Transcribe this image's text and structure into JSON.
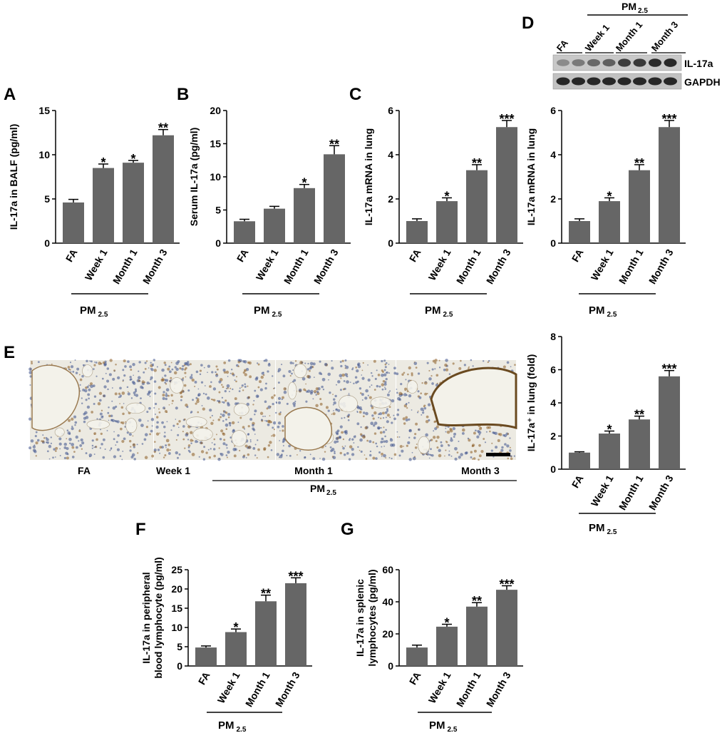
{
  "panels": [
    {
      "letter": "A",
      "type": "bar",
      "ylabel": "IL-17a in BALF (pg/ml)",
      "ylim": [
        0,
        15
      ],
      "yticks": [
        0,
        5,
        10,
        15
      ],
      "categories": [
        "FA",
        "Week 1",
        "Month 1",
        "Month 3"
      ],
      "values": [
        4.6,
        8.5,
        9.1,
        12.2
      ],
      "errors": [
        0.35,
        0.45,
        0.25,
        0.65
      ],
      "annotations": [
        "",
        "*",
        "*",
        "**"
      ],
      "group_label": "PM",
      "group_sub": "2.5"
    },
    {
      "letter": "B",
      "type": "bar",
      "ylabel": "Serum IL-17a (pg/ml)",
      "ylim": [
        0,
        20
      ],
      "yticks": [
        0,
        5,
        10,
        15,
        20
      ],
      "categories": [
        "FA",
        "Week 1",
        "Month 1",
        "Month 3"
      ],
      "values": [
        3.3,
        5.2,
        8.3,
        13.4
      ],
      "errors": [
        0.3,
        0.35,
        0.55,
        1.3
      ],
      "annotations": [
        "",
        "",
        "*",
        "**"
      ],
      "group_label": "PM",
      "group_sub": "2.5"
    },
    {
      "letter": "C",
      "type": "bar",
      "ylabel": "IL-17a mRNA in lung",
      "ylim": [
        0,
        6
      ],
      "yticks": [
        0,
        2,
        4,
        6
      ],
      "categories": [
        "FA",
        "Week 1",
        "Month 1",
        "Month 3"
      ],
      "values": [
        1.0,
        1.9,
        3.3,
        5.25
      ],
      "errors": [
        0.1,
        0.15,
        0.25,
        0.3
      ],
      "annotations": [
        "",
        "*",
        "**",
        "***"
      ],
      "group_label": "PM",
      "group_sub": "2.5"
    },
    {
      "letter": "D",
      "type": "bar",
      "ylabel": "IL-17a mRNA in lung",
      "ylim": [
        0,
        6
      ],
      "yticks": [
        0,
        2,
        4,
        6
      ],
      "categories": [
        "FA",
        "Week 1",
        "Month 1",
        "Month 3"
      ],
      "values": [
        1.0,
        1.9,
        3.3,
        5.25
      ],
      "errors": [
        0.1,
        0.15,
        0.25,
        0.3
      ],
      "annotations": [
        "",
        "*",
        "**",
        "***"
      ],
      "group_label": "PM",
      "group_sub": "2.5"
    },
    {
      "letter": "E",
      "type": "bar",
      "ylabel": "IL-17a⁺ in lung (fold)",
      "ylim": [
        0,
        8
      ],
      "yticks": [
        0,
        2,
        4,
        6,
        8
      ],
      "categories": [
        "FA",
        "Week 1",
        "Month 1",
        "Month 3"
      ],
      "values": [
        1.0,
        2.15,
        3.0,
        5.6
      ],
      "errors": [
        0.05,
        0.15,
        0.2,
        0.35
      ],
      "annotations": [
        "",
        "*",
        "**",
        "***"
      ],
      "group_label": "PM",
      "group_sub": "2.5"
    },
    {
      "letter": "F",
      "type": "bar",
      "ylabel": "IL-17a in peripheral blood lymphocyte (pg/ml)",
      "ylim": [
        0,
        25
      ],
      "yticks": [
        0,
        5,
        10,
        15,
        20,
        25
      ],
      "categories": [
        "FA",
        "Week 1",
        "Month 1",
        "Month 3"
      ],
      "values": [
        4.8,
        8.8,
        16.8,
        21.5
      ],
      "errors": [
        0.4,
        0.8,
        1.6,
        1.4
      ],
      "annotations": [
        "",
        "*",
        "**",
        "***"
      ],
      "group_label": "PM",
      "group_sub": "2.5"
    },
    {
      "letter": "G",
      "type": "bar",
      "ylabel": "IL-17a in splenic lymphocytes (pg/ml)",
      "ylim": [
        0,
        60
      ],
      "yticks": [
        0,
        20,
        40,
        60
      ],
      "categories": [
        "FA",
        "Week 1",
        "Month 1",
        "Month 3"
      ],
      "values": [
        11.5,
        24.5,
        37.0,
        47.5
      ],
      "errors": [
        1.5,
        1.5,
        2.5,
        2.5
      ],
      "annotations": [
        "",
        "*",
        "**",
        "***"
      ],
      "group_label": "PM",
      "group_sub": "2.5"
    }
  ],
  "chart_data": [
    {
      "type": "bar",
      "categories": [
        "FA",
        "Week 1",
        "Month 1",
        "Month 3"
      ],
      "values": [
        4.6,
        8.5,
        9.1,
        12.2
      ],
      "ylabel": "IL-17a in BALF (pg/ml)",
      "ylim": [
        0,
        15
      ]
    },
    {
      "type": "bar",
      "categories": [
        "FA",
        "Week 1",
        "Month 1",
        "Month 3"
      ],
      "values": [
        3.3,
        5.2,
        8.3,
        13.4
      ],
      "ylabel": "Serum IL-17a (pg/ml)",
      "ylim": [
        0,
        20
      ]
    },
    {
      "type": "bar",
      "categories": [
        "FA",
        "Week 1",
        "Month 1",
        "Month 3"
      ],
      "values": [
        1.0,
        1.9,
        3.3,
        5.25
      ],
      "ylabel": "IL-17a mRNA in lung",
      "ylim": [
        0,
        6
      ]
    },
    {
      "type": "bar",
      "categories": [
        "FA",
        "Week 1",
        "Month 1",
        "Month 3"
      ],
      "values": [
        1.0,
        1.9,
        3.3,
        5.25
      ],
      "ylabel": "IL-17a mRNA in lung",
      "ylim": [
        0,
        6
      ]
    },
    {
      "type": "bar",
      "categories": [
        "FA",
        "Week 1",
        "Month 1",
        "Month 3"
      ],
      "values": [
        1.0,
        2.15,
        3.0,
        5.6
      ],
      "ylabel": "IL-17a⁺ in lung (fold)",
      "ylim": [
        0,
        8
      ]
    },
    {
      "type": "bar",
      "categories": [
        "FA",
        "Week 1",
        "Month 1",
        "Month 3"
      ],
      "values": [
        4.8,
        8.8,
        16.8,
        21.5
      ],
      "ylabel": "IL-17a in peripheral blood lymphocyte (pg/ml)",
      "ylim": [
        0,
        25
      ]
    },
    {
      "type": "bar",
      "categories": [
        "FA",
        "Week 1",
        "Month 1",
        "Month 3"
      ],
      "values": [
        11.5,
        24.5,
        37.0,
        47.5
      ],
      "ylabel": "IL-17a in splenic lymphocytes (pg/ml)",
      "ylim": [
        0,
        60
      ]
    }
  ],
  "western_blot": {
    "lanes": [
      "FA",
      "Week 1",
      "Month 1",
      "Month 3"
    ],
    "group_label": "PM",
    "group_sub": "2.5",
    "bands": [
      "IL-17a",
      "GAPDH"
    ],
    "il17_intensity": [
      0.35,
      0.45,
      0.55,
      0.6,
      0.8,
      0.82,
      0.9,
      0.92
    ]
  },
  "histology": {
    "labels": [
      "FA",
      "Week 1",
      "Month 1",
      "Month 3"
    ],
    "group_label": "PM",
    "group_sub": "2.5"
  },
  "colors": {
    "bar": "#666666",
    "text": "#000000",
    "stain_brown": "#8a5a20",
    "stain_blue": "#3a4f8a"
  }
}
